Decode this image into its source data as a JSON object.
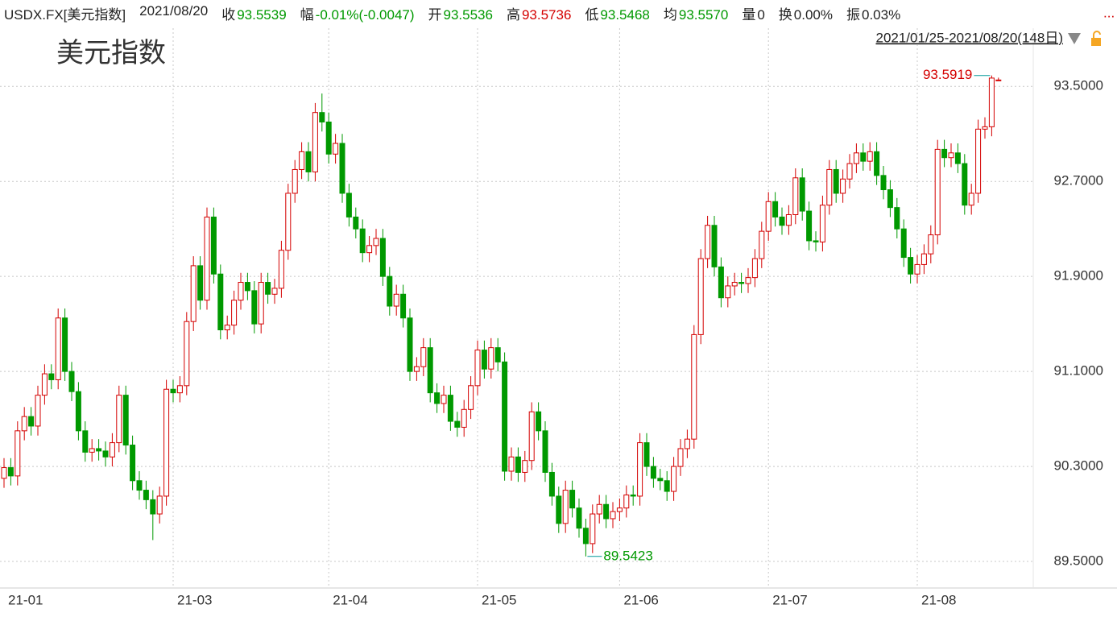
{
  "header": {
    "symbol": "USDX.FX[美元指数]",
    "date": "2021/08/20",
    "items": [
      {
        "label": "收",
        "value": "93.5539",
        "color": "#009900"
      },
      {
        "label": "幅",
        "value": "-0.01%(-0.0047)",
        "color": "#009900"
      },
      {
        "label": "开",
        "value": "93.5536",
        "color": "#009900"
      },
      {
        "label": "高",
        "value": "93.5736",
        "color": "#d40000"
      },
      {
        "label": "低",
        "value": "93.5468",
        "color": "#009900"
      },
      {
        "label": "均",
        "value": "93.5570",
        "color": "#009900"
      },
      {
        "label": "量",
        "value": "0",
        "color": "#222222"
      },
      {
        "label": "换",
        "value": "0.00%",
        "color": "#222222"
      },
      {
        "label": "振",
        "value": "0.03%",
        "color": "#222222"
      }
    ],
    "range": "2021/01/25-2021/08/20(148日)",
    "more": "..."
  },
  "chart_data": {
    "type": "candlestick",
    "title": "美元指数",
    "up_color": "#d40000",
    "down_color": "#009900",
    "grid": true,
    "ylim": [
      89.29,
      93.99
    ],
    "yticks": [
      {
        "value": 89.5,
        "label": "89.5000"
      },
      {
        "value": 90.3,
        "label": "90.3000"
      },
      {
        "value": 91.1,
        "label": "91.1000"
      },
      {
        "value": 91.9,
        "label": "91.9000"
      },
      {
        "value": 92.7,
        "label": "92.7000"
      },
      {
        "value": 93.5,
        "label": "93.5000"
      }
    ],
    "xticks": [
      {
        "value": 0,
        "label": "21-01"
      },
      {
        "value": 25,
        "label": "21-03"
      },
      {
        "value": 48,
        "label": "21-04"
      },
      {
        "value": 70,
        "label": "21-05"
      },
      {
        "value": 91,
        "label": "21-06"
      },
      {
        "value": 113,
        "label": "21-07"
      },
      {
        "value": 135,
        "label": "21-08"
      }
    ],
    "max_index": 146,
    "min_index": 86,
    "open": [
      90.2,
      90.29,
      90.22,
      90.6,
      90.72,
      90.64,
      90.9,
      91.08,
      91.03,
      91.55,
      91.1,
      90.93,
      90.6,
      90.42,
      90.45,
      90.43,
      90.38,
      90.5,
      90.9,
      90.48,
      90.18,
      90.1,
      90.02,
      89.9,
      90.05,
      90.95,
      90.92,
      90.98,
      91.52,
      91.99,
      91.7,
      92.4,
      91.92,
      91.45,
      91.49,
      91.7,
      91.85,
      91.78,
      91.5,
      91.85,
      91.75,
      91.8,
      92.12,
      92.6,
      92.8,
      92.95,
      92.78,
      93.28,
      93.2,
      92.93,
      93.02,
      92.6,
      92.4,
      92.3,
      92.1,
      92.16,
      92.22,
      91.9,
      91.65,
      91.75,
      91.55,
      91.1,
      91.14,
      91.3,
      90.92,
      90.83,
      90.9,
      90.68,
      90.63,
      90.78,
      90.98,
      91.28,
      91.12,
      91.3,
      91.18,
      90.26,
      90.38,
      90.25,
      90.35,
      90.76,
      90.6,
      90.25,
      90.05,
      89.82,
      90.1,
      89.95,
      89.78,
      89.65,
      89.9,
      89.98,
      89.86,
      89.92,
      89.95,
      90.06,
      90.05,
      90.5,
      90.3,
      90.2,
      90.18,
      90.09,
      90.3,
      90.45,
      90.53,
      91.41,
      92.05,
      92.33,
      91.98,
      91.72,
      91.82,
      91.85,
      91.84,
      91.89,
      92.05,
      92.28,
      92.53,
      92.4,
      92.33,
      92.42,
      92.73,
      92.45,
      92.2,
      92.19,
      92.5,
      92.8,
      92.6,
      92.72,
      92.85,
      92.94,
      92.87,
      92.95,
      92.75,
      92.63,
      92.48,
      92.3,
      92.06,
      91.92,
      92.0,
      92.09,
      92.25,
      92.97,
      92.9,
      92.94,
      92.85,
      92.5,
      92.6,
      93.14,
      93.16,
      93.5536
    ],
    "high": [
      90.37,
      90.37,
      90.68,
      90.8,
      90.8,
      90.98,
      91.16,
      91.16,
      91.63,
      91.63,
      91.18,
      91.01,
      90.68,
      90.53,
      90.53,
      90.51,
      90.58,
      90.98,
      90.98,
      90.56,
      90.26,
      90.18,
      90.1,
      90.13,
      91.03,
      91.03,
      91.06,
      91.6,
      92.07,
      92.07,
      92.48,
      92.48,
      92.0,
      91.57,
      91.78,
      91.93,
      91.93,
      91.86,
      91.93,
      91.93,
      91.88,
      92.2,
      92.68,
      92.88,
      93.03,
      93.03,
      93.36,
      93.44,
      93.28,
      93.1,
      93.1,
      92.68,
      92.48,
      92.38,
      92.24,
      92.3,
      92.3,
      91.98,
      91.83,
      91.83,
      91.63,
      91.22,
      91.38,
      91.38,
      91.0,
      90.98,
      90.98,
      90.76,
      90.86,
      91.06,
      91.36,
      91.36,
      91.38,
      91.38,
      91.26,
      90.46,
      90.46,
      90.43,
      90.84,
      90.84,
      90.68,
      90.33,
      90.13,
      90.18,
      90.18,
      90.03,
      89.86,
      89.98,
      90.06,
      90.06,
      90.0,
      90.03,
      90.14,
      90.14,
      90.58,
      90.58,
      90.38,
      90.28,
      90.26,
      90.38,
      90.53,
      90.61,
      91.49,
      92.13,
      92.41,
      92.41,
      92.06,
      91.9,
      91.93,
      91.93,
      91.97,
      92.13,
      92.36,
      92.61,
      92.61,
      92.48,
      92.5,
      92.81,
      92.81,
      92.53,
      92.28,
      92.58,
      92.88,
      92.88,
      92.8,
      92.93,
      93.02,
      93.02,
      93.03,
      93.03,
      92.83,
      92.71,
      92.56,
      92.38,
      92.14,
      92.08,
      92.17,
      92.33,
      93.05,
      93.05,
      93.02,
      93.02,
      92.93,
      92.68,
      93.22,
      93.24,
      93.5919,
      93.5736
    ],
    "low": [
      90.12,
      90.14,
      90.14,
      90.52,
      90.56,
      90.56,
      90.82,
      90.95,
      90.95,
      91.02,
      90.85,
      90.52,
      90.34,
      90.34,
      90.35,
      90.3,
      90.3,
      90.42,
      90.4,
      90.1,
      90.02,
      89.94,
      89.68,
      89.82,
      89.97,
      90.84,
      90.84,
      90.9,
      91.44,
      91.62,
      91.62,
      91.84,
      91.37,
      91.37,
      91.41,
      91.62,
      91.7,
      91.42,
      91.42,
      91.67,
      91.67,
      91.72,
      92.04,
      92.52,
      92.72,
      92.7,
      92.7,
      93.12,
      92.85,
      92.85,
      92.52,
      92.32,
      92.22,
      92.02,
      92.02,
      92.08,
      91.82,
      91.57,
      91.57,
      91.47,
      91.02,
      91.02,
      91.06,
      90.84,
      90.75,
      90.75,
      90.6,
      90.55,
      90.55,
      90.7,
      90.9,
      91.04,
      91.04,
      91.1,
      90.18,
      90.18,
      90.17,
      90.17,
      90.27,
      90.52,
      90.17,
      89.97,
      89.74,
      89.74,
      89.87,
      89.7,
      89.5423,
      89.57,
      89.82,
      89.78,
      89.78,
      89.84,
      89.87,
      89.97,
      89.97,
      90.22,
      90.12,
      90.1,
      90.01,
      90.01,
      90.22,
      90.37,
      90.45,
      91.33,
      91.97,
      91.9,
      91.64,
      91.64,
      91.74,
      91.76,
      91.76,
      91.81,
      91.97,
      92.2,
      92.32,
      92.25,
      92.25,
      92.34,
      92.37,
      92.12,
      92.11,
      92.11,
      92.42,
      92.52,
      92.52,
      92.64,
      92.77,
      92.79,
      92.79,
      92.67,
      92.55,
      92.4,
      92.22,
      91.98,
      91.84,
      91.84,
      91.92,
      92.01,
      92.17,
      92.82,
      92.82,
      92.77,
      92.42,
      92.42,
      92.52,
      93.06,
      93.08,
      93.5468
    ],
    "close": [
      90.29,
      90.22,
      90.6,
      90.72,
      90.64,
      90.9,
      91.08,
      91.03,
      91.55,
      91.1,
      90.93,
      90.6,
      90.42,
      90.45,
      90.43,
      90.38,
      90.5,
      90.9,
      90.48,
      90.18,
      90.1,
      90.02,
      89.9,
      90.05,
      90.95,
      90.92,
      90.98,
      91.52,
      91.99,
      91.7,
      92.4,
      91.92,
      91.45,
      91.49,
      91.7,
      91.85,
      91.78,
      91.5,
      91.85,
      91.75,
      91.8,
      92.12,
      92.6,
      92.8,
      92.95,
      92.78,
      93.28,
      93.2,
      92.93,
      93.02,
      92.6,
      92.4,
      92.3,
      92.1,
      92.16,
      92.22,
      91.9,
      91.65,
      91.75,
      91.55,
      91.1,
      91.14,
      91.3,
      90.92,
      90.83,
      90.9,
      90.68,
      90.63,
      90.78,
      90.98,
      91.28,
      91.12,
      91.3,
      91.18,
      90.26,
      90.38,
      90.25,
      90.35,
      90.76,
      90.6,
      90.25,
      90.05,
      89.82,
      90.1,
      89.95,
      89.78,
      89.65,
      89.9,
      89.98,
      89.86,
      89.92,
      89.95,
      90.06,
      90.05,
      90.5,
      90.3,
      90.2,
      90.18,
      90.09,
      90.3,
      90.45,
      90.53,
      91.41,
      92.05,
      92.33,
      91.98,
      91.72,
      91.82,
      91.85,
      91.84,
      91.89,
      92.05,
      92.28,
      92.53,
      92.4,
      92.33,
      92.42,
      92.73,
      92.45,
      92.2,
      92.19,
      92.5,
      92.8,
      92.6,
      92.72,
      92.85,
      92.94,
      92.87,
      92.95,
      92.75,
      92.63,
      92.48,
      92.3,
      92.06,
      91.92,
      92.0,
      92.09,
      92.25,
      92.97,
      92.9,
      92.94,
      92.85,
      92.5,
      92.6,
      93.14,
      93.16,
      93.57,
      93.5539
    ]
  }
}
